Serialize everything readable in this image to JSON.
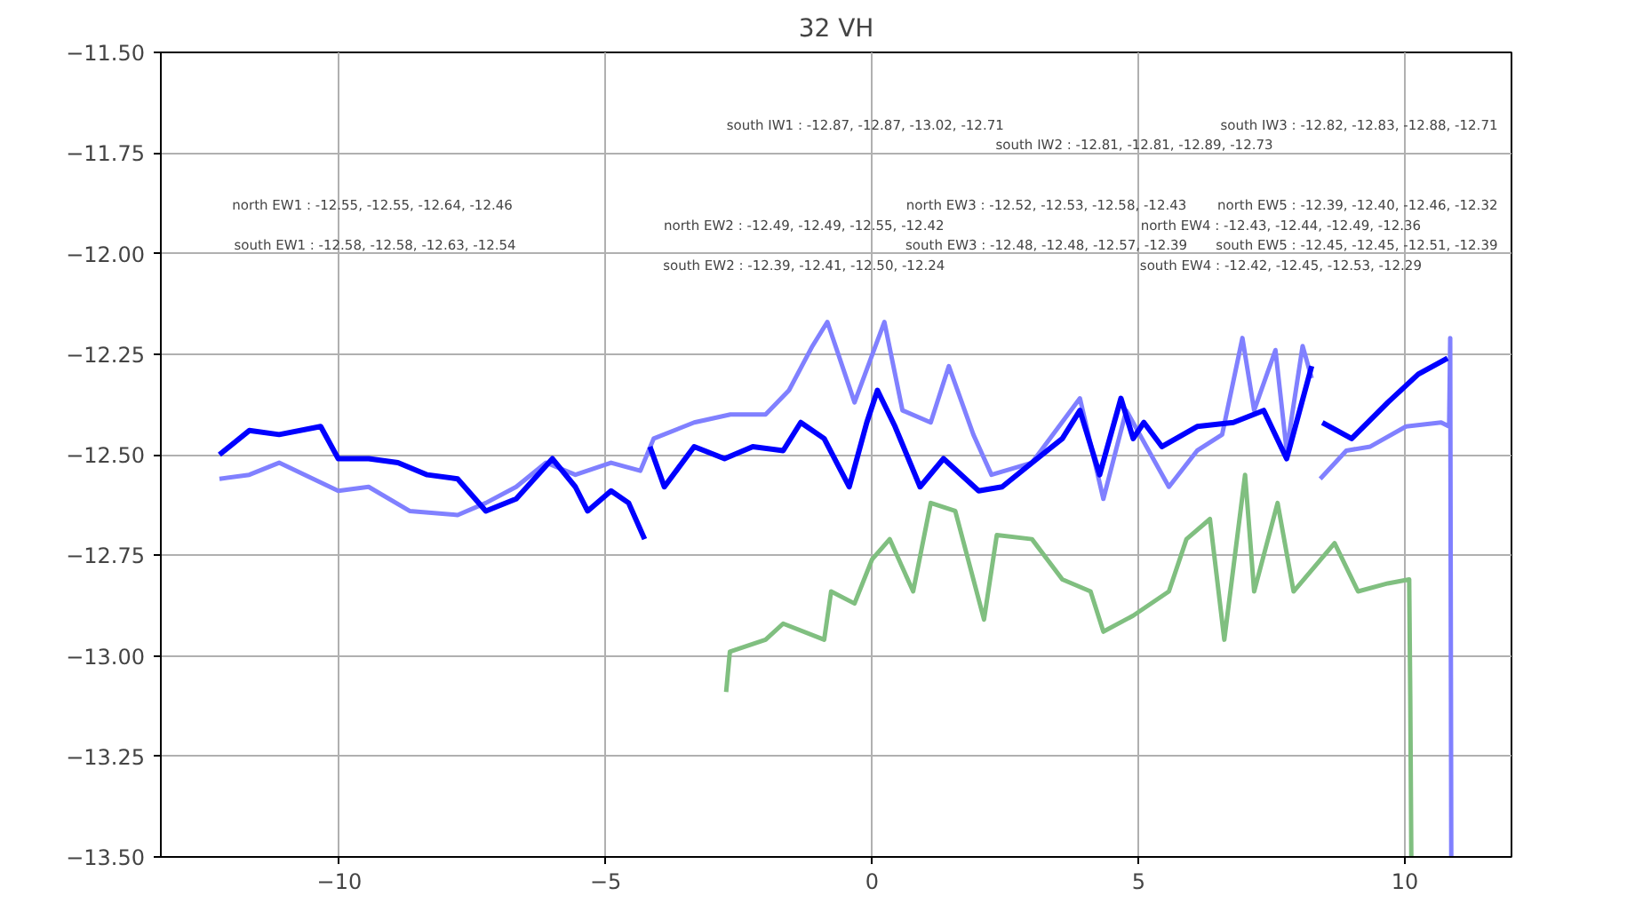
{
  "chart_data": {
    "type": "line",
    "title": "32 VH",
    "xlim": [
      -13.35,
      12.0
    ],
    "ylim": [
      -13.5,
      -11.5
    ],
    "xticks": [
      {
        "value": -10,
        "label": "−10"
      },
      {
        "value": -5,
        "label": "−5"
      },
      0,
      5,
      10
    ],
    "yticks": [
      {
        "value": -11.5,
        "label": "−11.50"
      },
      {
        "value": -11.75,
        "label": "−11.75"
      },
      {
        "value": -12.0,
        "label": "−12.00"
      },
      {
        "value": -12.25,
        "label": "−12.25"
      },
      {
        "value": -12.5,
        "label": "−12.50"
      },
      {
        "value": -12.75,
        "label": "−12.75"
      },
      {
        "value": -13.0,
        "label": "−13.00"
      },
      {
        "value": -13.25,
        "label": "−13.25"
      },
      {
        "value": -13.5,
        "label": "−13.50"
      }
    ],
    "grid": true,
    "marker": "none",
    "line_style": "solid",
    "series": [
      {
        "color": "#8080ff",
        "x": [
          -12.25,
          -11.69,
          -11.13,
          -10.02,
          -9.45,
          -8.68,
          -7.78,
          -7.25,
          -6.68,
          -6.12,
          -5.57,
          -4.9,
          -4.35,
          -4.1,
          -3.34,
          -2.66,
          -2.0,
          -1.56,
          -1.12,
          -0.84,
          -0.33,
          0.23,
          0.57,
          1.1,
          1.44,
          1.9,
          2.24,
          3.0,
          3.9,
          4.34,
          4.77,
          5.57,
          6.1,
          6.57,
          6.95,
          7.17,
          7.57,
          7.78,
          8.08,
          8.25,
          8.35,
          8.41,
          8.9,
          9.35,
          10.02,
          10.68,
          10.83,
          10.85,
          10.87
        ],
        "values": [
          -12.56,
          -12.55,
          -12.52,
          -12.59,
          -12.58,
          -12.64,
          -12.65,
          -12.62,
          -12.58,
          -12.52,
          -12.55,
          -12.52,
          -12.54,
          -12.46,
          -12.42,
          -12.4,
          -12.4,
          -12.34,
          -12.23,
          -12.17,
          -12.37,
          -12.17,
          -12.39,
          -12.42,
          -12.28,
          -12.45,
          -12.55,
          -12.52,
          -12.36,
          -12.61,
          -12.39,
          -12.58,
          -12.49,
          -12.45,
          -12.21,
          -12.39,
          -12.24,
          -12.49,
          -12.23,
          -12.31,
          null,
          -12.56,
          -12.49,
          -12.48,
          -12.43,
          -12.42,
          -12.43,
          -12.21,
          -13.5
        ]
      },
      {
        "color": "#0000ff",
        "x": [
          -12.25,
          -11.69,
          -11.13,
          -10.35,
          -10.02,
          -9.45,
          -8.9,
          -8.35,
          -7.78,
          -7.25,
          -6.68,
          -6.0,
          -5.57,
          -5.34,
          -4.9,
          -4.57,
          -4.27,
          -4.22,
          -4.17,
          -3.9,
          -3.34,
          -2.77,
          -2.24,
          -1.67,
          -1.34,
          -0.9,
          -0.43,
          -0.1,
          0.1,
          0.43,
          0.9,
          1.34,
          2.0,
          2.44,
          3.0,
          3.57,
          3.9,
          4.27,
          4.67,
          4.9,
          5.1,
          5.44,
          6.1,
          6.78,
          7.35,
          7.78,
          8.25,
          8.35,
          8.45,
          9.0,
          9.68,
          10.25,
          10.8
        ],
        "values": [
          -12.5,
          -12.44,
          -12.45,
          -12.43,
          -12.51,
          -12.51,
          -12.52,
          -12.55,
          -12.56,
          -12.64,
          -12.61,
          -12.51,
          -12.58,
          -12.64,
          -12.59,
          -12.62,
          -12.71,
          null,
          -12.48,
          -12.58,
          -12.48,
          -12.51,
          -12.48,
          -12.49,
          -12.42,
          -12.46,
          -12.58,
          -12.42,
          -12.34,
          -12.43,
          -12.58,
          -12.51,
          -12.59,
          -12.58,
          -12.52,
          -12.46,
          -12.39,
          -12.55,
          -12.36,
          -12.46,
          -12.42,
          -12.48,
          -12.43,
          -12.42,
          -12.39,
          -12.51,
          -12.28,
          null,
          -12.42,
          -12.46,
          -12.37,
          -12.3,
          -12.26
        ]
      },
      {
        "color": "#80bf80",
        "x": [
          -2.74,
          -2.67,
          -2.0,
          -1.67,
          -0.9,
          -0.77,
          -0.33,
          0.0,
          0.33,
          0.77,
          1.1,
          1.56,
          2.1,
          2.34,
          3.0,
          3.57,
          4.1,
          4.34,
          4.9,
          5.57,
          5.9,
          6.34,
          6.61,
          7.0,
          7.17,
          7.61,
          7.91,
          8.68,
          9.12,
          9.68,
          10.08,
          10.1,
          10.12
        ],
        "values": [
          -13.09,
          -12.99,
          -12.96,
          -12.92,
          -12.96,
          -12.84,
          -12.87,
          -12.76,
          -12.71,
          -12.84,
          -12.62,
          -12.64,
          -12.91,
          -12.7,
          -12.71,
          -12.81,
          -12.84,
          -12.94,
          -12.9,
          -12.84,
          -12.71,
          -12.66,
          -12.96,
          -12.55,
          -12.84,
          -12.62,
          -12.84,
          -12.72,
          -12.84,
          -12.82,
          -12.81,
          -13.1,
          -13.5
        ]
      }
    ],
    "annotations": [
      "south IW1 :  -12.87,  -12.87, -13.02, -12.71",
      "south IW2 :  -12.81,  -12.81, -12.89, -12.73",
      "south IW3 :  -12.82,  -12.83, -12.88, -12.71",
      "north EW1 :  -12.55,  -12.55, -12.64, -12.46",
      "south EW1 :  -12.58,  -12.58, -12.63, -12.54",
      "north EW2 :  -12.49,  -12.49, -12.55, -12.42",
      "south EW2 :  -12.39,  -12.41, -12.50, -12.24",
      "north EW3 :  -12.52,  -12.53, -12.58, -12.43",
      "south EW3 :  -12.48,  -12.48, -12.57, -12.39",
      "north EW4 :  -12.43,  -12.44, -12.49, -12.36",
      "south EW4 :  -12.42,  -12.45, -12.53, -12.29",
      "north EW5 :  -12.39,  -12.40, -12.46, -12.32",
      "south EW5 :  -12.45,  -12.45, -12.51, -12.39"
    ]
  }
}
